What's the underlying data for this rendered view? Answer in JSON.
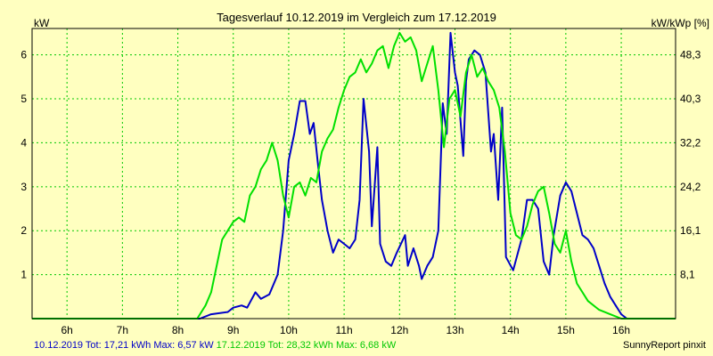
{
  "chart_data": {
    "type": "line",
    "title": "Tagesverlauf 10.12.2019 im Vergleich zum 17.12.2019",
    "ylabel_left": "kW",
    "ylabel_right": "kW/kWp [%]",
    "x_ticks": [
      "6h",
      "7h",
      "8h",
      "9h",
      "10h",
      "11h",
      "12h",
      "13h",
      "14h",
      "15h",
      "16h"
    ],
    "x_tick_hours": [
      6,
      7,
      8,
      9,
      10,
      11,
      12,
      13,
      14,
      15,
      16
    ],
    "xlim": [
      5.37,
      16.98
    ],
    "ylim": [
      0,
      6.6
    ],
    "y_ticks_left": [
      "1",
      "2",
      "3",
      "4",
      "5",
      "6"
    ],
    "y_tick_values_left": [
      1,
      2,
      3,
      4,
      5,
      6
    ],
    "y_ticks_right": [
      "8,1",
      "16,1",
      "24,2",
      "32,2",
      "40,3",
      "48,3"
    ],
    "grid": true,
    "colors": {
      "background": "#ffffc0",
      "grid": "#00c800",
      "axis": "#000000",
      "series_1": "#0000c8",
      "series_2": "#00e000"
    },
    "series": [
      {
        "name": "10.12.2019",
        "color": "#0000c8",
        "points": [
          [
            5.37,
            0
          ],
          [
            8.4,
            0
          ],
          [
            8.6,
            0.1
          ],
          [
            8.9,
            0.15
          ],
          [
            9.0,
            0.25
          ],
          [
            9.15,
            0.3
          ],
          [
            9.25,
            0.25
          ],
          [
            9.4,
            0.6
          ],
          [
            9.5,
            0.45
          ],
          [
            9.65,
            0.55
          ],
          [
            9.8,
            1.0
          ],
          [
            9.9,
            2.0
          ],
          [
            10.0,
            3.6
          ],
          [
            10.1,
            4.2
          ],
          [
            10.2,
            4.95
          ],
          [
            10.3,
            4.95
          ],
          [
            10.38,
            4.2
          ],
          [
            10.45,
            4.45
          ],
          [
            10.52,
            3.6
          ],
          [
            10.6,
            2.7
          ],
          [
            10.7,
            2.0
          ],
          [
            10.8,
            1.5
          ],
          [
            10.9,
            1.8
          ],
          [
            11.0,
            1.7
          ],
          [
            11.1,
            1.6
          ],
          [
            11.2,
            1.8
          ],
          [
            11.28,
            2.7
          ],
          [
            11.35,
            5.0
          ],
          [
            11.45,
            3.8
          ],
          [
            11.5,
            2.1
          ],
          [
            11.6,
            3.9
          ],
          [
            11.65,
            1.7
          ],
          [
            11.75,
            1.3
          ],
          [
            11.85,
            1.2
          ],
          [
            11.95,
            1.5
          ],
          [
            12.1,
            1.9
          ],
          [
            12.15,
            1.2
          ],
          [
            12.25,
            1.6
          ],
          [
            12.35,
            1.2
          ],
          [
            12.4,
            0.9
          ],
          [
            12.5,
            1.2
          ],
          [
            12.6,
            1.4
          ],
          [
            12.7,
            2.0
          ],
          [
            12.78,
            4.9
          ],
          [
            12.85,
            4.2
          ],
          [
            12.92,
            6.5
          ],
          [
            13.0,
            5.6
          ],
          [
            13.05,
            5.3
          ],
          [
            13.15,
            3.7
          ],
          [
            13.2,
            5.4
          ],
          [
            13.25,
            5.9
          ],
          [
            13.35,
            6.1
          ],
          [
            13.45,
            6.0
          ],
          [
            13.55,
            5.6
          ],
          [
            13.65,
            3.8
          ],
          [
            13.7,
            4.2
          ],
          [
            13.78,
            2.7
          ],
          [
            13.85,
            4.8
          ],
          [
            13.92,
            1.4
          ],
          [
            14.05,
            1.1
          ],
          [
            14.2,
            1.8
          ],
          [
            14.3,
            2.7
          ],
          [
            14.4,
            2.7
          ],
          [
            14.5,
            2.5
          ],
          [
            14.6,
            1.3
          ],
          [
            14.7,
            1.0
          ],
          [
            14.78,
            1.9
          ],
          [
            14.9,
            2.8
          ],
          [
            15.0,
            3.1
          ],
          [
            15.1,
            2.9
          ],
          [
            15.2,
            2.4
          ],
          [
            15.3,
            1.9
          ],
          [
            15.4,
            1.8
          ],
          [
            15.5,
            1.6
          ],
          [
            15.6,
            1.2
          ],
          [
            15.7,
            0.8
          ],
          [
            15.8,
            0.5
          ],
          [
            15.9,
            0.3
          ],
          [
            16.0,
            0.1
          ],
          [
            16.1,
            0.0
          ],
          [
            16.98,
            0
          ]
        ]
      },
      {
        "name": "17.12.2019",
        "color": "#00e000",
        "points": [
          [
            5.37,
            0
          ],
          [
            8.35,
            0
          ],
          [
            8.5,
            0.3
          ],
          [
            8.6,
            0.6
          ],
          [
            8.7,
            1.2
          ],
          [
            8.8,
            1.8
          ],
          [
            8.9,
            2.0
          ],
          [
            9.0,
            2.2
          ],
          [
            9.1,
            2.3
          ],
          [
            9.2,
            2.2
          ],
          [
            9.3,
            2.8
          ],
          [
            9.4,
            3.0
          ],
          [
            9.5,
            3.4
          ],
          [
            9.6,
            3.6
          ],
          [
            9.7,
            4.0
          ],
          [
            9.8,
            3.6
          ],
          [
            9.9,
            2.8
          ],
          [
            10.0,
            2.3
          ],
          [
            10.1,
            3.0
          ],
          [
            10.2,
            3.1
          ],
          [
            10.3,
            2.8
          ],
          [
            10.4,
            3.2
          ],
          [
            10.5,
            3.1
          ],
          [
            10.6,
            3.8
          ],
          [
            10.7,
            4.1
          ],
          [
            10.8,
            4.3
          ],
          [
            10.9,
            4.8
          ],
          [
            11.0,
            5.2
          ],
          [
            11.1,
            5.5
          ],
          [
            11.2,
            5.6
          ],
          [
            11.3,
            5.9
          ],
          [
            11.4,
            5.6
          ],
          [
            11.5,
            5.8
          ],
          [
            11.6,
            6.1
          ],
          [
            11.7,
            6.2
          ],
          [
            11.8,
            5.7
          ],
          [
            11.9,
            6.2
          ],
          [
            12.0,
            6.5
          ],
          [
            12.1,
            6.3
          ],
          [
            12.2,
            6.4
          ],
          [
            12.3,
            6.1
          ],
          [
            12.4,
            5.4
          ],
          [
            12.5,
            5.8
          ],
          [
            12.6,
            6.2
          ],
          [
            12.7,
            5.2
          ],
          [
            12.8,
            3.9
          ],
          [
            12.9,
            5.0
          ],
          [
            13.0,
            5.2
          ],
          [
            13.1,
            4.6
          ],
          [
            13.2,
            5.6
          ],
          [
            13.3,
            6.0
          ],
          [
            13.4,
            5.5
          ],
          [
            13.5,
            5.7
          ],
          [
            13.6,
            5.4
          ],
          [
            13.7,
            5.2
          ],
          [
            13.8,
            4.8
          ],
          [
            13.9,
            3.8
          ],
          [
            14.0,
            2.4
          ],
          [
            14.1,
            1.9
          ],
          [
            14.2,
            1.8
          ],
          [
            14.3,
            2.1
          ],
          [
            14.4,
            2.6
          ],
          [
            14.5,
            2.9
          ],
          [
            14.6,
            3.0
          ],
          [
            14.7,
            2.4
          ],
          [
            14.8,
            1.7
          ],
          [
            14.9,
            1.5
          ],
          [
            15.0,
            2.0
          ],
          [
            15.1,
            1.3
          ],
          [
            15.2,
            0.8
          ],
          [
            15.4,
            0.4
          ],
          [
            15.6,
            0.2
          ],
          [
            15.8,
            0.1
          ],
          [
            16.0,
            0.0
          ],
          [
            16.98,
            0
          ]
        ]
      }
    ]
  },
  "footer": {
    "series1_text": "10.12.2019 Tot: 17,21 kWh Max: 6,57 kW",
    "series2_text": "17.12.2019 Tot: 28,32 kWh Max: 6,68 kW",
    "credit": "SunnyReport pinxit"
  }
}
